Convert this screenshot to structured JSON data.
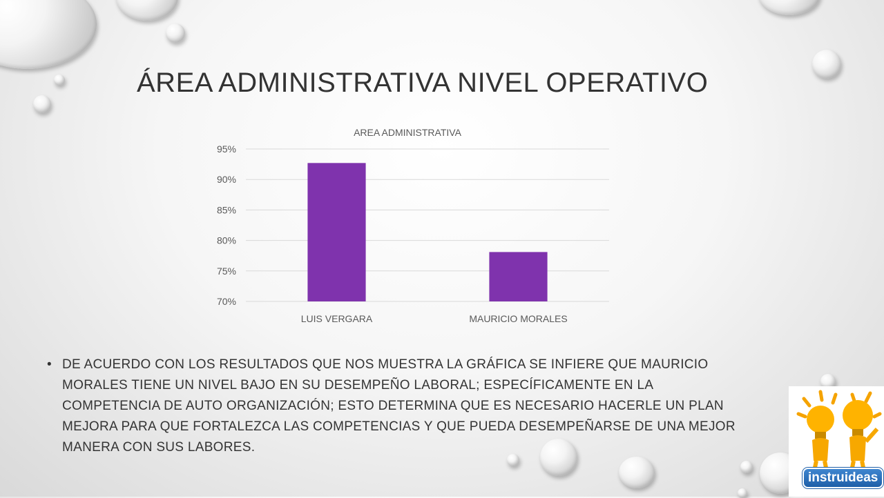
{
  "slide": {
    "title": "ÁREA ADMINISTRATIVA NIVEL OPERATIVO",
    "bullet_text": "DE ACUERDO CON LOS RESULTADOS QUE NOS MUESTRA LA GRÁFICA SE INFIERE QUE MAURICIO MORALES TIENE UN NIVEL BAJO EN SU DESEMPEÑO LABORAL; ESPECÍFICAMENTE  EN LA COMPETENCIA DE AUTO ORGANIZACIÓN; ESTO DETERMINA QUE ES NECESARIO HACERLE UN PLAN MEJORA PARA QUE FORTALEZCA LAS COMPETENCIAS Y QUE PUEDA DESEMPEÑARSE DE UNA MEJOR MANERA CON SUS LABORES.",
    "bullet_symbol": "•",
    "logo_text": "instruideas"
  },
  "chart_data": {
    "type": "bar",
    "title": "AREA ADMINISTRATIVA",
    "categories": [
      "LUIS VERGARA",
      "MAURICIO MORALES"
    ],
    "values": [
      92.7,
      78.1
    ],
    "ylim": [
      70,
      95
    ],
    "yticks": [
      "70%",
      "75%",
      "80%",
      "85%",
      "90%",
      "95%"
    ],
    "ytick_values": [
      70,
      75,
      80,
      85,
      90,
      95
    ],
    "grid": true,
    "bar_color": "#7f33ad",
    "xlabel": "",
    "ylabel": ""
  }
}
